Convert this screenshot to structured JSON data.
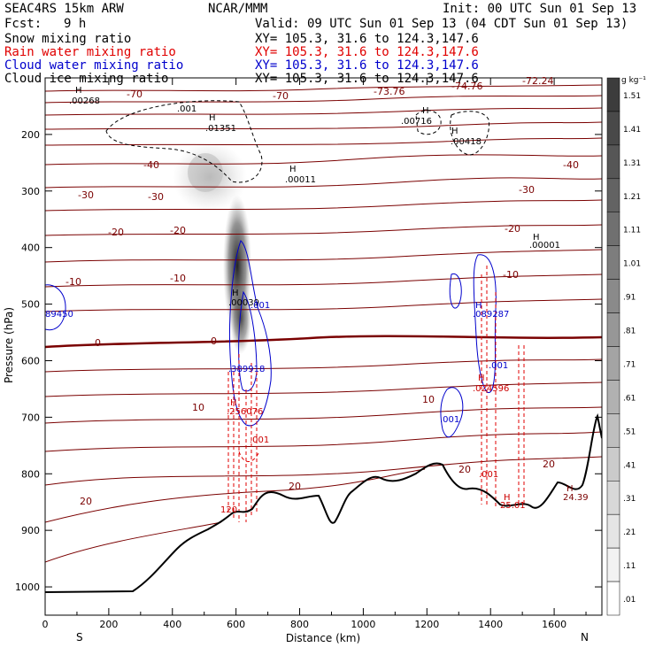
{
  "header": {
    "model": "SEAC4RS 15km ARW",
    "org": "NCAR/MMM",
    "init": "Init: 00 UTC Sun 01 Sep 13",
    "fcst_label": "Fcst:",
    "fcst_value": "9 h",
    "valid": "Valid: 09 UTC Sun 01 Sep 13 (04 CDT Sun 01 Sep 13)",
    "fields": [
      {
        "name": "Snow mixing ratio",
        "xy": "XY= 105.3, 31.6 to 124.3,147.6",
        "color": "#000000"
      },
      {
        "name": "Rain water mixing ratio",
        "xy": "XY= 105.3, 31.6 to 124.3,147.6",
        "color": "#e00000"
      },
      {
        "name": "Cloud water mixing ratio",
        "xy": "XY= 105.3, 31.6 to 124.3,147.6",
        "color": "#0000cc"
      },
      {
        "name": "Cloud ice mixing ratio",
        "xy": "XY= 105.3, 31.6 to 124.3,147.6",
        "color": "#000000"
      }
    ]
  },
  "chart_data": {
    "type": "cross-section",
    "xlabel": "Distance (km)",
    "ylabel": "Pressure (hPa)",
    "xlim": [
      0,
      1750
    ],
    "ylim": [
      100,
      1050
    ],
    "x_ticks": [
      0,
      200,
      400,
      600,
      800,
      1000,
      1200,
      1400,
      1600
    ],
    "y_ticks": [
      200,
      300,
      400,
      500,
      600,
      700,
      800,
      900,
      1000
    ],
    "x_end_labels": {
      "left": "S",
      "right": "N"
    },
    "colorbar": {
      "unit": "g kg⁻¹",
      "labels": [
        "1.51",
        "1.41",
        "1.31",
        "1.21",
        "1.11",
        "1.01",
        ".91",
        ".81",
        ".71",
        ".61",
        ".51",
        ".41",
        ".31",
        ".21",
        ".11",
        ".01"
      ]
    },
    "temperature_contours": [
      {
        "value": -70,
        "labels": [
          "-70",
          "-70"
        ]
      },
      {
        "value": -40,
        "labels": [
          "-40",
          "-40"
        ]
      },
      {
        "value": -30,
        "labels": [
          "-30",
          "-30",
          "-30"
        ]
      },
      {
        "value": -20,
        "labels": [
          "-20",
          "-20",
          "-20"
        ]
      },
      {
        "value": -10,
        "labels": [
          "-10",
          "-10",
          "-10"
        ]
      },
      {
        "value": 0,
        "labels": [
          "0",
          "0"
        ]
      },
      {
        "value": 10,
        "labels": [
          "10",
          "10"
        ]
      },
      {
        "value": 20,
        "labels": [
          "20",
          "20",
          "20",
          "20"
        ]
      }
    ],
    "temperature_extrema": [
      "-73.76",
      "-74.76",
      "-72.24"
    ],
    "extrema_labels": {
      "snow": [
        "H",
        ".00268",
        "H",
        ".01351",
        "H",
        ".00011",
        "H",
        ".00716",
        "H",
        ".00418",
        "H",
        ".00001",
        ".001"
      ],
      "cloud_water": [
        "H",
        ".00039",
        ".001",
        "89450",
        ".389918",
        "H",
        ".089287",
        ".001",
        ".001"
      ],
      "rain": [
        "H",
        ".256076",
        ".001",
        "H",
        ".024596",
        ".001",
        "H",
        "25.01",
        "120"
      ],
      "terrain": [
        "H",
        "24.39"
      ]
    }
  }
}
